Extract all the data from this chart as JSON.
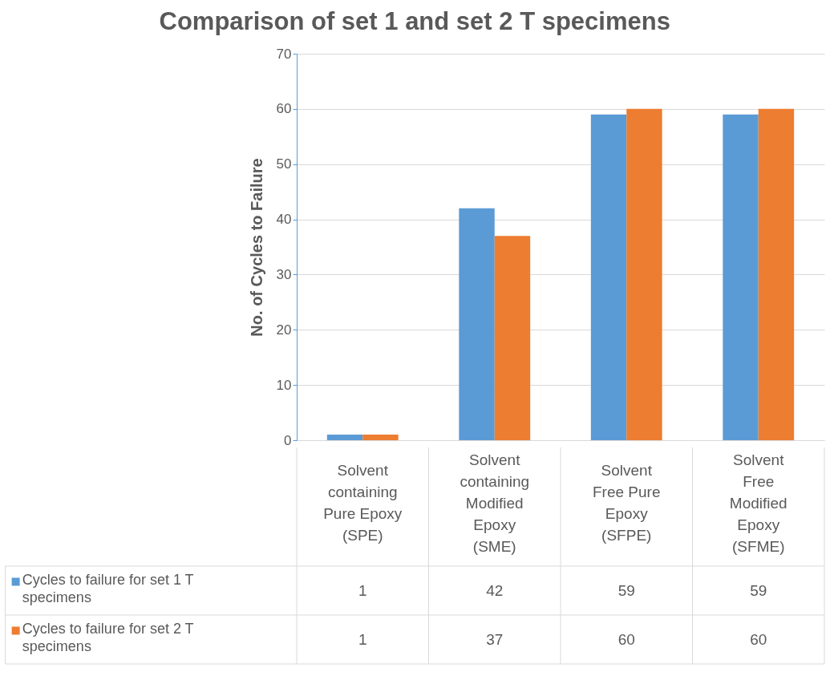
{
  "chart_data": {
    "type": "bar",
    "title": "Comparison of set 1 and set 2 T specimens",
    "ylabel": "No. of Cycles to Failure",
    "categories": [
      "Solvent containing Pure Epoxy (SPE)",
      "Solvent containing Modified Epoxy (SME)",
      "Solvent Free Pure Epoxy (SFPE)",
      "Solvent Free Modified Epoxy (SFME)"
    ],
    "series": [
      {
        "name": "Cycles to failure for set 1 T specimens",
        "color": "#5b9bd5",
        "values": [
          1,
          42,
          59,
          59
        ]
      },
      {
        "name": "Cycles to failure for set 2 T specimens",
        "color": "#ed7d31",
        "values": [
          1,
          37,
          60,
          60
        ]
      }
    ],
    "ylim": [
      0,
      70
    ],
    "yticks": [
      0,
      10,
      20,
      30,
      40,
      50,
      60,
      70
    ],
    "grid": "y",
    "legend": "bottom",
    "data_labels": true
  }
}
